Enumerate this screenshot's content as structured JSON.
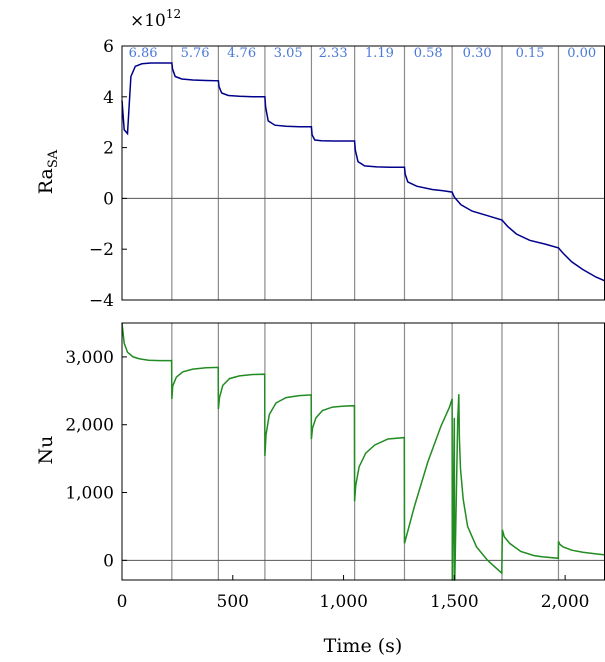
{
  "chart_data": [
    {
      "type": "line",
      "ylabel_main": "Ra",
      "ylabel_sub": "SA",
      "multiplier_base": "×10",
      "multiplier_exp": "12",
      "xlim": [
        0,
        2180
      ],
      "ylim": [
        -4,
        6
      ],
      "yticks": [
        {
          "value": 6,
          "label": "6"
        },
        {
          "value": 4,
          "label": "4"
        },
        {
          "value": 2,
          "label": "2"
        },
        {
          "value": 0,
          "label": "0"
        },
        {
          "value": -2,
          "label": "−2"
        },
        {
          "value": -4,
          "label": "−4"
        }
      ],
      "zero_line": 0,
      "vertical_lines": [
        225,
        435,
        645,
        855,
        1050,
        1275,
        1490,
        1715,
        1970
      ],
      "segment_labels": [
        {
          "x": 95,
          "label": "6.86"
        },
        {
          "x": 330,
          "label": "5.76"
        },
        {
          "x": 540,
          "label": "4.76"
        },
        {
          "x": 750,
          "label": "3.05"
        },
        {
          "x": 953,
          "label": "2.33"
        },
        {
          "x": 1162,
          "label": "1.19"
        },
        {
          "x": 1382,
          "label": "0.58"
        },
        {
          "x": 1603,
          "label": "0.30"
        },
        {
          "x": 1842,
          "label": "0.15"
        },
        {
          "x": 2075,
          "label": "0.00"
        }
      ],
      "series": [
        {
          "color": "#00008b",
          "x": [
            0,
            10,
            25,
            40,
            60,
            90,
            130,
            170,
            200,
            225,
            228,
            240,
            270,
            320,
            380,
            435,
            438,
            450,
            480,
            530,
            590,
            645,
            648,
            660,
            690,
            740,
            800,
            855,
            858,
            870,
            900,
            950,
            1000,
            1050,
            1053,
            1065,
            1095,
            1150,
            1210,
            1275,
            1278,
            1290,
            1330,
            1400,
            1450,
            1490,
            1500,
            1530,
            1580,
            1650,
            1715,
            1740,
            1780,
            1840,
            1910,
            1970,
            1990,
            2030,
            2080,
            2140,
            2180
          ],
          "y": [
            3.85,
            2.7,
            2.55,
            4.8,
            5.2,
            5.3,
            5.33,
            5.33,
            5.33,
            5.33,
            5.1,
            4.8,
            4.7,
            4.66,
            4.64,
            4.63,
            4.4,
            4.15,
            4.05,
            4.02,
            4.0,
            4.0,
            3.6,
            3.05,
            2.88,
            2.84,
            2.82,
            2.82,
            2.5,
            2.3,
            2.27,
            2.26,
            2.26,
            2.26,
            1.9,
            1.45,
            1.28,
            1.24,
            1.23,
            1.23,
            0.95,
            0.65,
            0.48,
            0.35,
            0.3,
            0.25,
            0.05,
            -0.25,
            -0.5,
            -0.68,
            -0.85,
            -1.1,
            -1.4,
            -1.65,
            -1.8,
            -1.95,
            -2.15,
            -2.5,
            -2.8,
            -3.1,
            -3.25
          ]
        }
      ]
    },
    {
      "type": "line",
      "ylabel": "Nu",
      "xlabel": "Time (s)",
      "xlim": [
        0,
        2180
      ],
      "ylim": [
        -290,
        3500
      ],
      "xticks": [
        {
          "value": 0,
          "label": "0"
        },
        {
          "value": 500,
          "label": "500"
        },
        {
          "value": 1000,
          "label": "1,000"
        },
        {
          "value": 1500,
          "label": "1,500"
        },
        {
          "value": 2000,
          "label": "2,000"
        }
      ],
      "yticks": [
        {
          "value": 3000,
          "label": "3,000"
        },
        {
          "value": 2000,
          "label": "2,000"
        },
        {
          "value": 1000,
          "label": "1,000"
        },
        {
          "value": 0,
          "label": "0"
        }
      ],
      "zero_line": 0,
      "vertical_lines": [
        225,
        435,
        645,
        855,
        1050,
        1275,
        1490,
        1715,
        1970
      ],
      "series": [
        {
          "color": "#228b22",
          "x": [
            0,
            10,
            25,
            50,
            80,
            120,
            170,
            224,
            225,
            229,
            245,
            275,
            320,
            380,
            434,
            435,
            440,
            455,
            485,
            530,
            590,
            644,
            645,
            650,
            665,
            695,
            740,
            800,
            854,
            855,
            860,
            875,
            905,
            950,
            1000,
            1049,
            1050,
            1055,
            1070,
            1100,
            1140,
            1200,
            1274,
            1275,
            1320,
            1380,
            1440,
            1478,
            1490,
            1491,
            1492,
            1500,
            1501,
            1502,
            1515,
            1520,
            1523,
            1528,
            1540,
            1560,
            1600,
            1650,
            1714,
            1715,
            1717,
            1725,
            1750,
            1800,
            1860,
            1900,
            1969,
            1970,
            1975,
            1990,
            2030,
            2080,
            2130,
            2180
          ],
          "y": [
            3500,
            3200,
            3070,
            3000,
            2970,
            2950,
            2945,
            2945,
            2380,
            2570,
            2700,
            2780,
            2820,
            2840,
            2845,
            2230,
            2400,
            2580,
            2680,
            2720,
            2740,
            2745,
            1540,
            1850,
            2150,
            2320,
            2400,
            2430,
            2440,
            1790,
            1950,
            2100,
            2210,
            2260,
            2275,
            2280,
            870,
            1100,
            1380,
            1580,
            1700,
            1790,
            1810,
            250,
            800,
            1450,
            1980,
            2260,
            2380,
            -290,
            -290,
            2100,
            -290,
            -290,
            2060,
            2450,
            1800,
            1350,
            900,
            500,
            200,
            0,
            -190,
            50,
            450,
            350,
            250,
            130,
            70,
            50,
            30,
            280,
            240,
            200,
            150,
            120,
            100,
            80
          ]
        }
      ]
    }
  ]
}
